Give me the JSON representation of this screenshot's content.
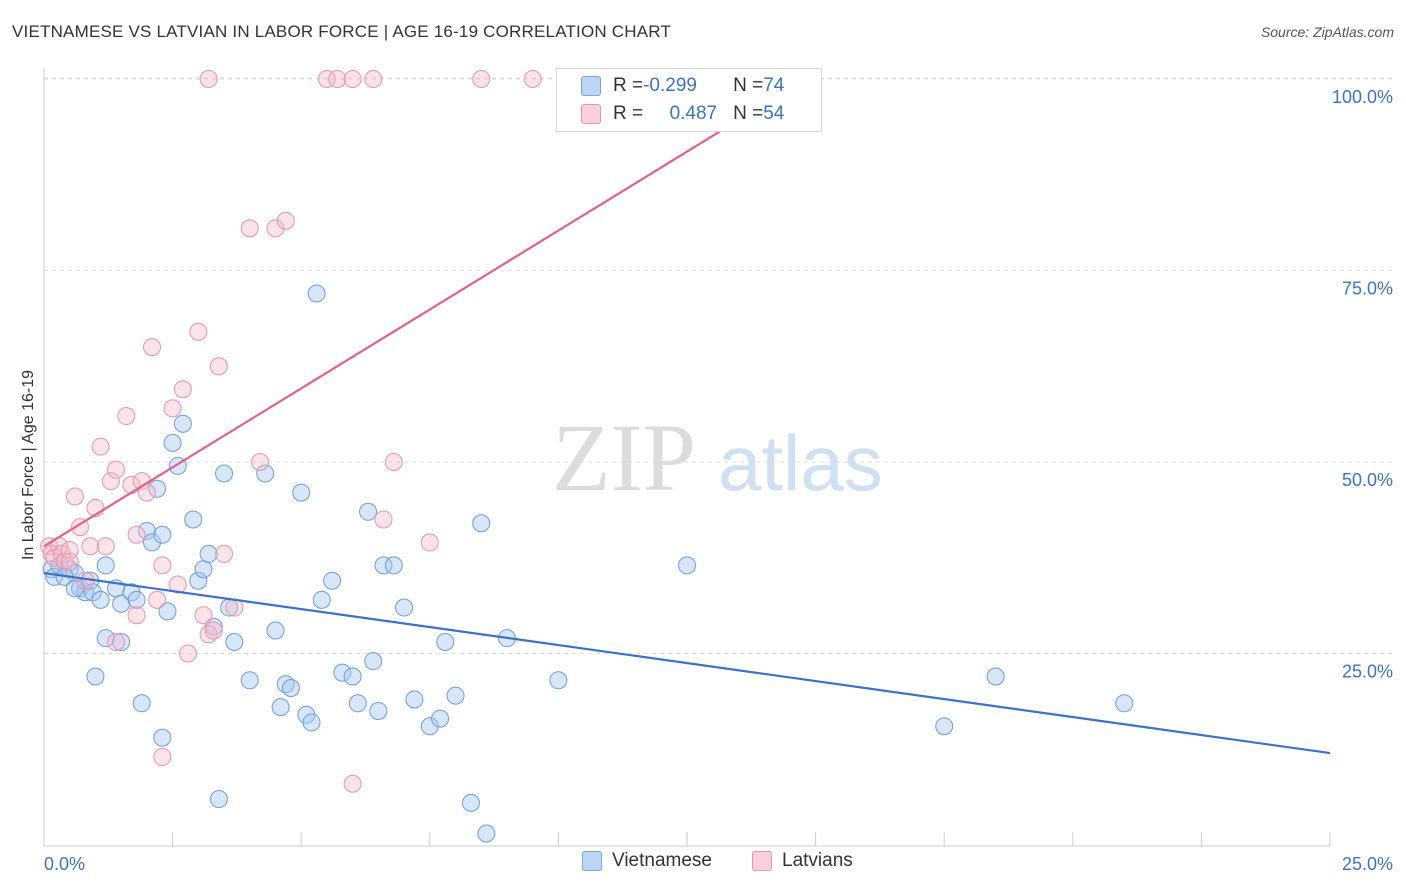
{
  "header": {
    "title": "VIETNAMESE VS LATVIAN IN LABOR FORCE | AGE 16-19 CORRELATION CHART",
    "source": "Source: ZipAtlas.com"
  },
  "watermark": {
    "zip": "ZIP",
    "atlas": "atlas"
  },
  "legend": {
    "rows": [
      {
        "r_label": "R = ",
        "r_value": "-0.299",
        "n_label": "N = ",
        "n_value": "74",
        "color": "#a9c8f2"
      },
      {
        "r_label": "R = ",
        "r_value": "0.487",
        "n_label": "N = ",
        "n_value": "54",
        "color": "#f6b8ca"
      }
    ]
  },
  "bottom_legend": [
    {
      "label": "Vietnamese",
      "color": "#a9c8f2"
    },
    {
      "label": "Latvians",
      "color": "#f6b8ca"
    }
  ],
  "chart_data": {
    "type": "scatter",
    "title": "VIETNAMESE VS LATVIAN IN LABOR FORCE | AGE 16-19 CORRELATION CHART",
    "xlabel": "",
    "ylabel": "In Labor Force | Age 16-19",
    "xlim": [
      0,
      25
    ],
    "ylim": [
      0,
      100
    ],
    "x_tick_labels": [
      "0.0%",
      "25.0%"
    ],
    "y_tick_labels": [
      "100.0%",
      "75.0%",
      "50.0%",
      "25.0%"
    ],
    "y_ticks": [
      100,
      75,
      50,
      25
    ],
    "grid": true,
    "colors": {
      "vietnamese": "#3b73c4",
      "latvians": "#e0628a"
    },
    "series": [
      {
        "name": "Vietnamese",
        "R": -0.299,
        "N": 74,
        "trend": {
          "x": [
            0,
            25
          ],
          "y": [
            35.5,
            12.0
          ]
        },
        "points": [
          [
            0.15,
            36
          ],
          [
            0.2,
            35
          ],
          [
            0.3,
            36.5
          ],
          [
            0.5,
            36
          ],
          [
            0.6,
            35.5
          ],
          [
            0.7,
            33.5
          ],
          [
            0.8,
            33
          ],
          [
            0.9,
            34.5
          ],
          [
            0.95,
            33
          ],
          [
            1.1,
            32
          ],
          [
            1.2,
            36.5
          ],
          [
            1.4,
            33.5
          ],
          [
            1.5,
            31.5
          ],
          [
            1.7,
            33
          ],
          [
            1.8,
            32
          ],
          [
            2.0,
            41
          ],
          [
            2.1,
            39.5
          ],
          [
            2.2,
            46.5
          ],
          [
            2.3,
            40.5
          ],
          [
            2.4,
            30.5
          ],
          [
            2.5,
            52.5
          ],
          [
            2.6,
            49.5
          ],
          [
            2.7,
            55
          ],
          [
            2.9,
            42.5
          ],
          [
            3.0,
            34.5
          ],
          [
            3.1,
            36
          ],
          [
            3.2,
            38
          ],
          [
            3.3,
            28.5
          ],
          [
            3.5,
            48.5
          ],
          [
            3.6,
            31
          ],
          [
            3.7,
            26.5
          ],
          [
            4.0,
            21.5
          ],
          [
            4.3,
            48.5
          ],
          [
            4.5,
            28
          ],
          [
            4.6,
            18
          ],
          [
            4.7,
            21
          ],
          [
            4.8,
            20.5
          ],
          [
            5.0,
            46
          ],
          [
            5.1,
            17
          ],
          [
            5.2,
            16
          ],
          [
            5.3,
            72
          ],
          [
            5.4,
            32
          ],
          [
            5.6,
            34.5
          ],
          [
            5.8,
            22.5
          ],
          [
            6.0,
            22
          ],
          [
            6.1,
            18.5
          ],
          [
            6.3,
            43.5
          ],
          [
            6.4,
            24
          ],
          [
            6.5,
            17.5
          ],
          [
            6.6,
            36.5
          ],
          [
            6.8,
            36.5
          ],
          [
            7.0,
            31
          ],
          [
            7.2,
            19
          ],
          [
            7.5,
            15.5
          ],
          [
            7.7,
            16.5
          ],
          [
            7.8,
            26.5
          ],
          [
            8.0,
            19.5
          ],
          [
            8.3,
            5.5
          ],
          [
            8.5,
            42
          ],
          [
            8.6,
            1.5
          ],
          [
            9.0,
            27
          ],
          [
            10.0,
            21.5
          ],
          [
            12.5,
            36.5
          ],
          [
            17.5,
            15.5
          ],
          [
            18.5,
            22
          ],
          [
            21.0,
            18.5
          ],
          [
            1.0,
            22
          ],
          [
            1.2,
            27
          ],
          [
            1.5,
            26.5
          ],
          [
            1.9,
            18.5
          ],
          [
            2.3,
            14
          ],
          [
            3.4,
            6
          ],
          [
            0.4,
            35
          ],
          [
            0.6,
            33.5
          ]
        ]
      },
      {
        "name": "Latvians",
        "R": 0.487,
        "N": 54,
        "trend": {
          "x": [
            0,
            14.8
          ],
          "y": [
            39.0,
            100.0
          ]
        },
        "points": [
          [
            0.1,
            39
          ],
          [
            0.15,
            38
          ],
          [
            0.2,
            37.5
          ],
          [
            0.3,
            39
          ],
          [
            0.35,
            38
          ],
          [
            0.4,
            37
          ],
          [
            0.5,
            38.5
          ],
          [
            0.6,
            45.5
          ],
          [
            0.7,
            41.5
          ],
          [
            0.8,
            34.5
          ],
          [
            0.9,
            39
          ],
          [
            1.0,
            44
          ],
          [
            1.1,
            52
          ],
          [
            1.2,
            39
          ],
          [
            1.3,
            47.5
          ],
          [
            1.4,
            49
          ],
          [
            1.6,
            56
          ],
          [
            1.7,
            47
          ],
          [
            1.8,
            40.5
          ],
          [
            1.9,
            47.5
          ],
          [
            2.0,
            46
          ],
          [
            2.1,
            65
          ],
          [
            2.2,
            32
          ],
          [
            2.3,
            36.5
          ],
          [
            2.5,
            57
          ],
          [
            2.6,
            34
          ],
          [
            2.7,
            59.5
          ],
          [
            2.8,
            25
          ],
          [
            3.0,
            67
          ],
          [
            3.1,
            30
          ],
          [
            3.2,
            27.5
          ],
          [
            3.3,
            28
          ],
          [
            3.4,
            62.5
          ],
          [
            3.5,
            38
          ],
          [
            3.7,
            31
          ],
          [
            4.0,
            80.5
          ],
          [
            4.2,
            50
          ],
          [
            4.5,
            80.5
          ],
          [
            4.7,
            81.5
          ],
          [
            5.5,
            100
          ],
          [
            5.7,
            100
          ],
          [
            6.0,
            100
          ],
          [
            6.4,
            100
          ],
          [
            6.6,
            42.5
          ],
          [
            6.8,
            50
          ],
          [
            7.5,
            39.5
          ],
          [
            8.5,
            100
          ],
          [
            9.5,
            100
          ],
          [
            1.4,
            26.5
          ],
          [
            2.3,
            11.5
          ],
          [
            6.0,
            8
          ],
          [
            3.2,
            100
          ],
          [
            1.8,
            30
          ],
          [
            0.5,
            37
          ]
        ]
      }
    ]
  }
}
